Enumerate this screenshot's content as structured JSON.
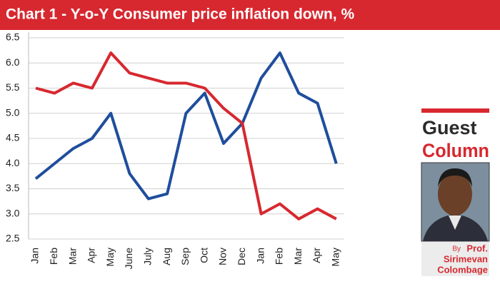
{
  "chart_data": {
    "type": "line",
    "title": "Chart 1 - Y-o-Y Consumer price inflation down, %",
    "categories": [
      "Jan",
      "Feb",
      "Mar",
      "Apr",
      "May",
      "June",
      "July",
      "Aug",
      "Sep",
      "Oct",
      "Nov",
      "Dec",
      "Jan",
      "Feb",
      "Mar",
      "Apr",
      "May"
    ],
    "series": [
      {
        "color": "#1f4e9c",
        "values": [
          3.7,
          4.0,
          4.3,
          4.5,
          5.0,
          3.8,
          3.3,
          3.4,
          5.0,
          5.4,
          4.4,
          4.8,
          5.7,
          6.2,
          5.4,
          5.2,
          4.0
        ]
      },
      {
        "color": "#d7282f",
        "values": [
          5.5,
          5.4,
          5.6,
          5.5,
          6.2,
          5.8,
          5.7,
          5.6,
          5.6,
          5.5,
          5.1,
          4.8,
          3.0,
          3.2,
          2.9,
          3.1,
          2.9
        ]
      }
    ],
    "ylim": [
      2.5,
      6.5
    ],
    "yticks": [
      2.5,
      {
        "value": 3,
        "label": "3.0"
      },
      3.5,
      {
        "value": 4,
        "label": "4.0"
      },
      4.5,
      {
        "value": 5,
        "label": "5.0"
      },
      5.5,
      {
        "value": 6,
        "label": "6.0"
      },
      6.5
    ],
    "grid": true
  },
  "sidebar": {
    "heading": [
      "Guest",
      "Column"
    ],
    "byline_prefix": "By",
    "author": [
      "Prof.",
      "Sirimevan",
      "Colombage"
    ]
  }
}
